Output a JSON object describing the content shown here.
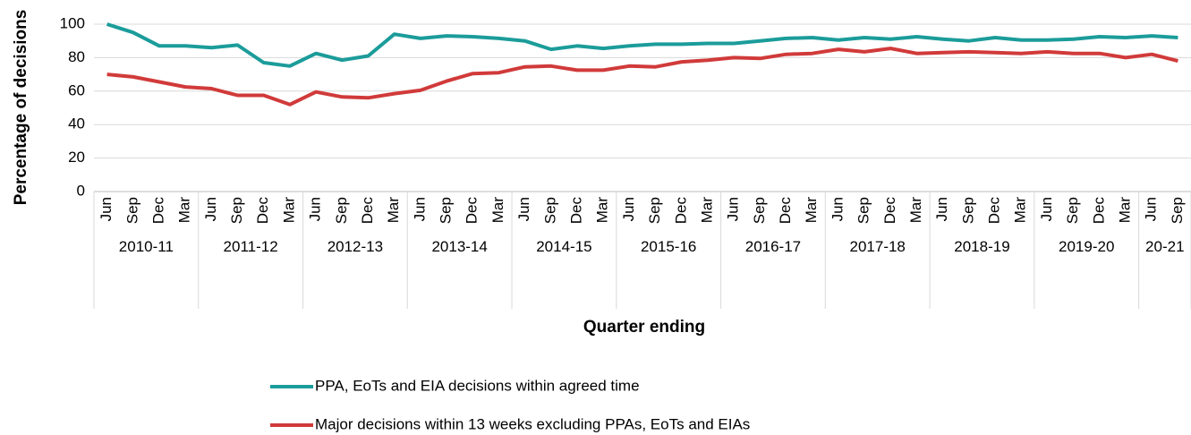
{
  "chart_data": {
    "type": "line",
    "y_label": "Percentage of decisions",
    "x_label": "Quarter ending",
    "categories": [
      "Jun",
      "Sep",
      "Dec",
      "Mar",
      "Jun",
      "Sep",
      "Dec",
      "Mar",
      "Jun",
      "Sep",
      "Dec",
      "Mar",
      "Jun",
      "Sep",
      "Dec",
      "Mar",
      "Jun",
      "Sep",
      "Dec",
      "Mar",
      "Jun",
      "Sep",
      "Dec",
      "Mar",
      "Jun",
      "Sep",
      "Dec",
      "Mar",
      "Jun",
      "Sep",
      "Dec",
      "Mar",
      "Jun",
      "Sep",
      "Dec",
      "Mar",
      "Jun",
      "Sep",
      "Dec",
      "Mar",
      "Jun",
      "Sep"
    ],
    "category_groups": [
      {
        "label": "2010-11",
        "size": 4
      },
      {
        "label": "2011-12",
        "size": 4
      },
      {
        "label": "2012-13",
        "size": 4
      },
      {
        "label": "2013-14",
        "size": 4
      },
      {
        "label": "2014-15",
        "size": 4
      },
      {
        "label": "2015-16",
        "size": 4
      },
      {
        "label": "2016-17",
        "size": 4
      },
      {
        "label": "2017-18",
        "size": 4
      },
      {
        "label": "2018-19",
        "size": 4
      },
      {
        "label": "2019-20",
        "size": 4
      },
      {
        "label": "20-21",
        "size": 2
      }
    ],
    "series": [
      {
        "name": "PPA, EoTs and EIA decisions within agreed time",
        "color": "#1b9c9a",
        "values": [
          100,
          95,
          87,
          87,
          86,
          87.5,
          77,
          75,
          82.5,
          78.5,
          81,
          94,
          91.5,
          93,
          92.5,
          91.5,
          90,
          85,
          87,
          85.5,
          87,
          88,
          88,
          88.5,
          88.5,
          90,
          91.5,
          92,
          90.5,
          92,
          91,
          92.5,
          91,
          90,
          92,
          90.5,
          90.5,
          91,
          92.5,
          92,
          93,
          92
        ]
      },
      {
        "name": "Major decisions within 13 weeks excluding PPAs, EoTs and EIAs",
        "color": "#d13a3a",
        "values": [
          70,
          68.5,
          65.5,
          62.5,
          61.5,
          57.5,
          57.5,
          52,
          59.5,
          56.5,
          56,
          58.5,
          60.5,
          66,
          70.5,
          71,
          74.5,
          75,
          72.5,
          72.5,
          75,
          74.5,
          77.5,
          78.5,
          80,
          79.5,
          82,
          82.5,
          85,
          83.5,
          85.5,
          82.5,
          83,
          83.5,
          83,
          82.5,
          83.5,
          82.5,
          82.5,
          80,
          82,
          78
        ]
      }
    ],
    "ylim": [
      0,
      100
    ],
    "yticks": [
      0,
      20,
      40,
      60,
      80,
      100
    ],
    "grid": true
  }
}
